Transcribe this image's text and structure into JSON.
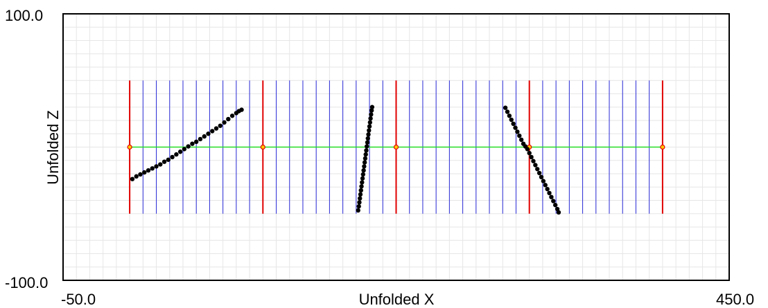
{
  "chart_data": {
    "type": "scatter",
    "title": "",
    "xlabel": "Unfolded X",
    "ylabel": "Unfolded Z",
    "xlim": [
      -50.0,
      450.0
    ],
    "ylim": [
      -100.0,
      100.0
    ],
    "x_tick_labels": [
      "-50.0",
      "450.0"
    ],
    "y_tick_labels": [
      "100.0",
      "-100.0"
    ],
    "grid": true,
    "minor_grid_step_x": 10,
    "minor_grid_step_y": 10,
    "colors": {
      "section_boundary": "#e00000",
      "section_divider": "#2a2ad8",
      "baseline": "#22dd22",
      "points": "#000000",
      "grid": "#e6e6e6",
      "frame": "#000000"
    },
    "baseline": {
      "y": 0,
      "x_start": 0,
      "x_end": 400
    },
    "vertical_lines": {
      "y_min": -50,
      "y_max": 50
    },
    "section_boundaries_x": [
      0,
      100,
      200,
      300,
      400
    ],
    "section_dividers_x": [
      10,
      20,
      30,
      40,
      50,
      60,
      70,
      80,
      90,
      110,
      120,
      130,
      140,
      150,
      160,
      170,
      180,
      190,
      210,
      220,
      230,
      240,
      250,
      260,
      270,
      280,
      290,
      310,
      320,
      330,
      340,
      350,
      360,
      370,
      380,
      390
    ],
    "series": [
      {
        "values": [
          [
            2,
            -24
          ],
          [
            5,
            -22
          ],
          [
            8,
            -20.5
          ],
          [
            11,
            -19
          ],
          [
            14,
            -17.5
          ],
          [
            17,
            -16
          ],
          [
            20,
            -14.5
          ],
          [
            23,
            -13
          ],
          [
            26,
            -11
          ],
          [
            29,
            -9.5
          ],
          [
            32,
            -7.5
          ],
          [
            35,
            -5.5
          ],
          [
            38,
            -3.5
          ],
          [
            41,
            -1.5
          ],
          [
            44,
            0.5
          ],
          [
            47,
            2.5
          ],
          [
            50,
            4
          ],
          [
            53,
            6
          ],
          [
            56,
            8
          ],
          [
            59,
            10
          ],
          [
            62,
            12
          ],
          [
            65,
            14
          ],
          [
            68,
            16
          ],
          [
            71,
            18.5
          ],
          [
            74,
            21
          ],
          [
            77,
            23.5
          ],
          [
            80,
            25.5
          ],
          [
            82,
            27
          ],
          [
            84,
            28
          ]
        ]
      },
      {
        "values": [
          [
            171.5,
            -47.5
          ],
          [
            172,
            -44.5
          ],
          [
            172.4,
            -41.5
          ],
          [
            172.8,
            -38.5
          ],
          [
            173.2,
            -35.5
          ],
          [
            173.6,
            -32.5
          ],
          [
            174,
            -29.5
          ],
          [
            174.4,
            -26.5
          ],
          [
            174.8,
            -23.5
          ],
          [
            175.2,
            -20.5
          ],
          [
            175.6,
            -17.5
          ],
          [
            176,
            -14.5
          ],
          [
            176.4,
            -11.5
          ],
          [
            176.8,
            -8.5
          ],
          [
            177.2,
            -5.5
          ],
          [
            177.6,
            -2.5
          ],
          [
            178,
            0.5
          ],
          [
            178.4,
            3.5
          ],
          [
            178.8,
            6.5
          ],
          [
            179.2,
            9.5
          ],
          [
            179.6,
            12.5
          ],
          [
            180,
            15.5
          ],
          [
            180.4,
            18.5
          ],
          [
            180.8,
            21.5
          ],
          [
            181.2,
            24.5
          ],
          [
            181.6,
            27.5
          ],
          [
            182,
            30
          ]
        ]
      },
      {
        "values": [
          [
            282,
            29.5
          ],
          [
            283.5,
            26.5
          ],
          [
            285,
            23.5
          ],
          [
            286.5,
            20.5
          ],
          [
            288,
            17.5
          ],
          [
            289.5,
            14.5
          ],
          [
            291,
            11.5
          ],
          [
            292.5,
            8.5
          ],
          [
            294,
            5.5
          ],
          [
            295.5,
            2.5
          ],
          [
            297,
            0.5
          ],
          [
            298.5,
            -1.5
          ],
          [
            300,
            -4.5
          ],
          [
            301.5,
            -7.5
          ],
          [
            303,
            -10.5
          ],
          [
            304.5,
            -13.5
          ],
          [
            306,
            -16.5
          ],
          [
            307.5,
            -19.5
          ],
          [
            309,
            -22.5
          ],
          [
            310.5,
            -25.5
          ],
          [
            312,
            -28.5
          ],
          [
            313.5,
            -31.5
          ],
          [
            315,
            -34.5
          ],
          [
            316.5,
            -37.5
          ],
          [
            318,
            -40.5
          ],
          [
            319.5,
            -43.5
          ],
          [
            321,
            -46.5
          ],
          [
            322,
            -49
          ]
        ]
      }
    ]
  }
}
